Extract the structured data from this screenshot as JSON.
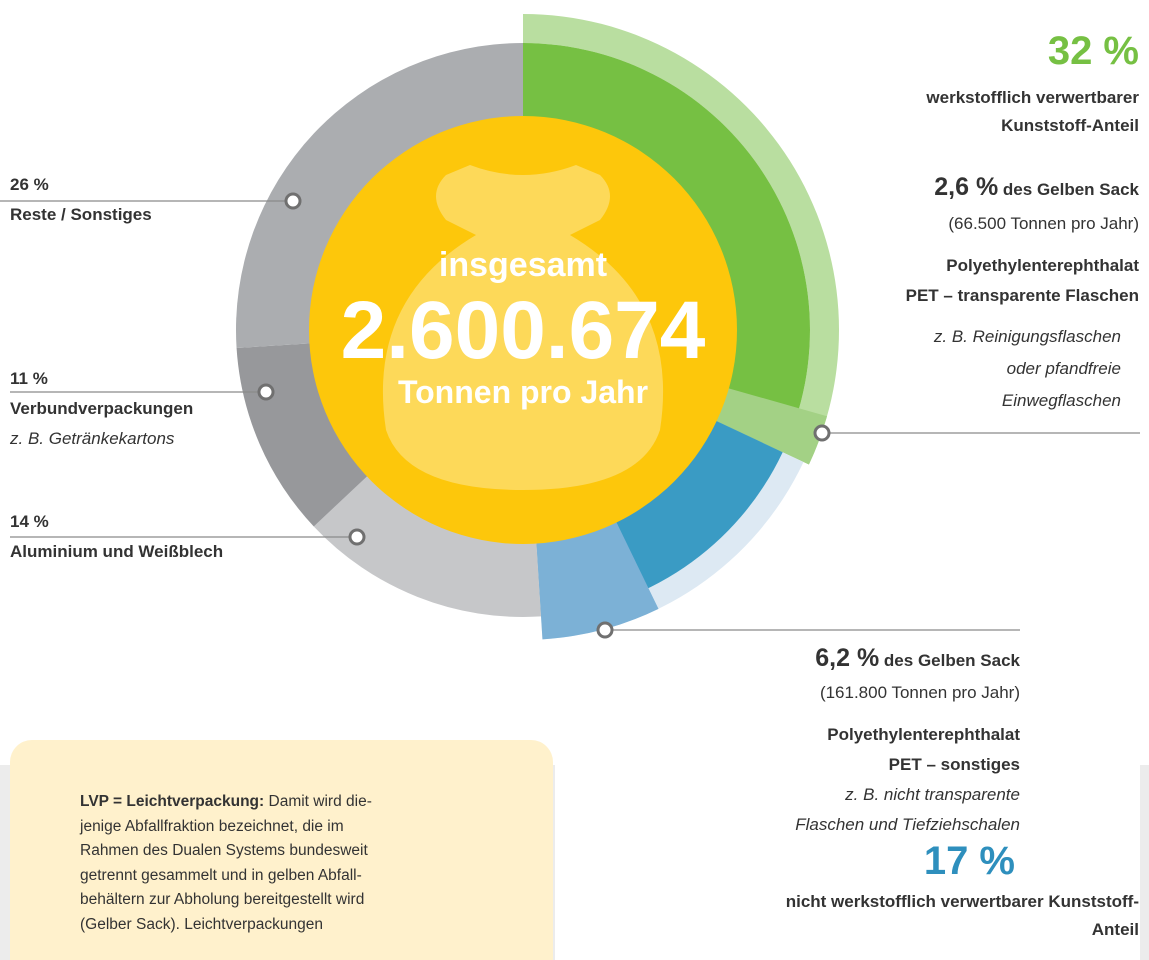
{
  "chart_data": {
    "type": "donut",
    "center": {
      "line1": "insgesamt",
      "total": "2.600.674",
      "unit": "Tonnen pro Jahr"
    },
    "segments": [
      {
        "name": "werkstofflich verwertbarer Kunststoff-Anteil",
        "value": 32,
        "value_label": "32 %",
        "color": "#76c043",
        "ring_color": "#b9dea0",
        "detail": {
          "value": 2.6,
          "value_label": "2,6 %",
          "suffix": "des Gelben Sack",
          "amount": "(66.500 Tonnen pro Jahr)",
          "material": "Polyethylenterephthalat",
          "kind": "PET – transparente Flaschen",
          "example_lines": [
            "z. B. Reinigungsflaschen",
            "oder pfandfreie",
            "Einwegflaschen"
          ],
          "color": "#a3d185"
        }
      },
      {
        "name": "nicht werkstofflich verwertbarer Kunststoff-Anteil",
        "value": 17,
        "value_label": "17 %",
        "color": "#3a9bc4",
        "ring_color": "#dde9f3",
        "detail": {
          "value": 6.2,
          "value_label": "6,2 %",
          "suffix": "des Gelben Sack",
          "amount": "(161.800 Tonnen pro Jahr)",
          "material": "Polyethylenterephthalat",
          "kind": "PET – sonstiges",
          "example_lines": [
            "z. B. nicht transparente",
            "Flaschen und Tiefziehschalen"
          ],
          "color": "#7cb1d6"
        }
      },
      {
        "name": "Aluminium und Weißblech",
        "value": 14,
        "value_label": "14 %",
        "color": "#c6c7c9"
      },
      {
        "name": "Verbundverpackungen",
        "value": 11,
        "value_label": "11 %",
        "color": "#97989b",
        "note": "z. B. Getränkekartons"
      },
      {
        "name": "Reste / Sonstiges",
        "value": 26,
        "value_label": "26 %",
        "color": "#abadb0"
      }
    ],
    "info": {
      "term": "LVP = Leichtverpackung:",
      "lines": [
        "Damit wird die-",
        "jenige Abfallfraktion bezeichnet, die im",
        "Rahmen des Dualen Systems bundesweit",
        "getrennt gesammelt und in gelben Abfall-",
        "behältern zur Abholung bereitgestellt wird",
        "(Gelber Sack). Leichtverpackungen"
      ]
    }
  }
}
